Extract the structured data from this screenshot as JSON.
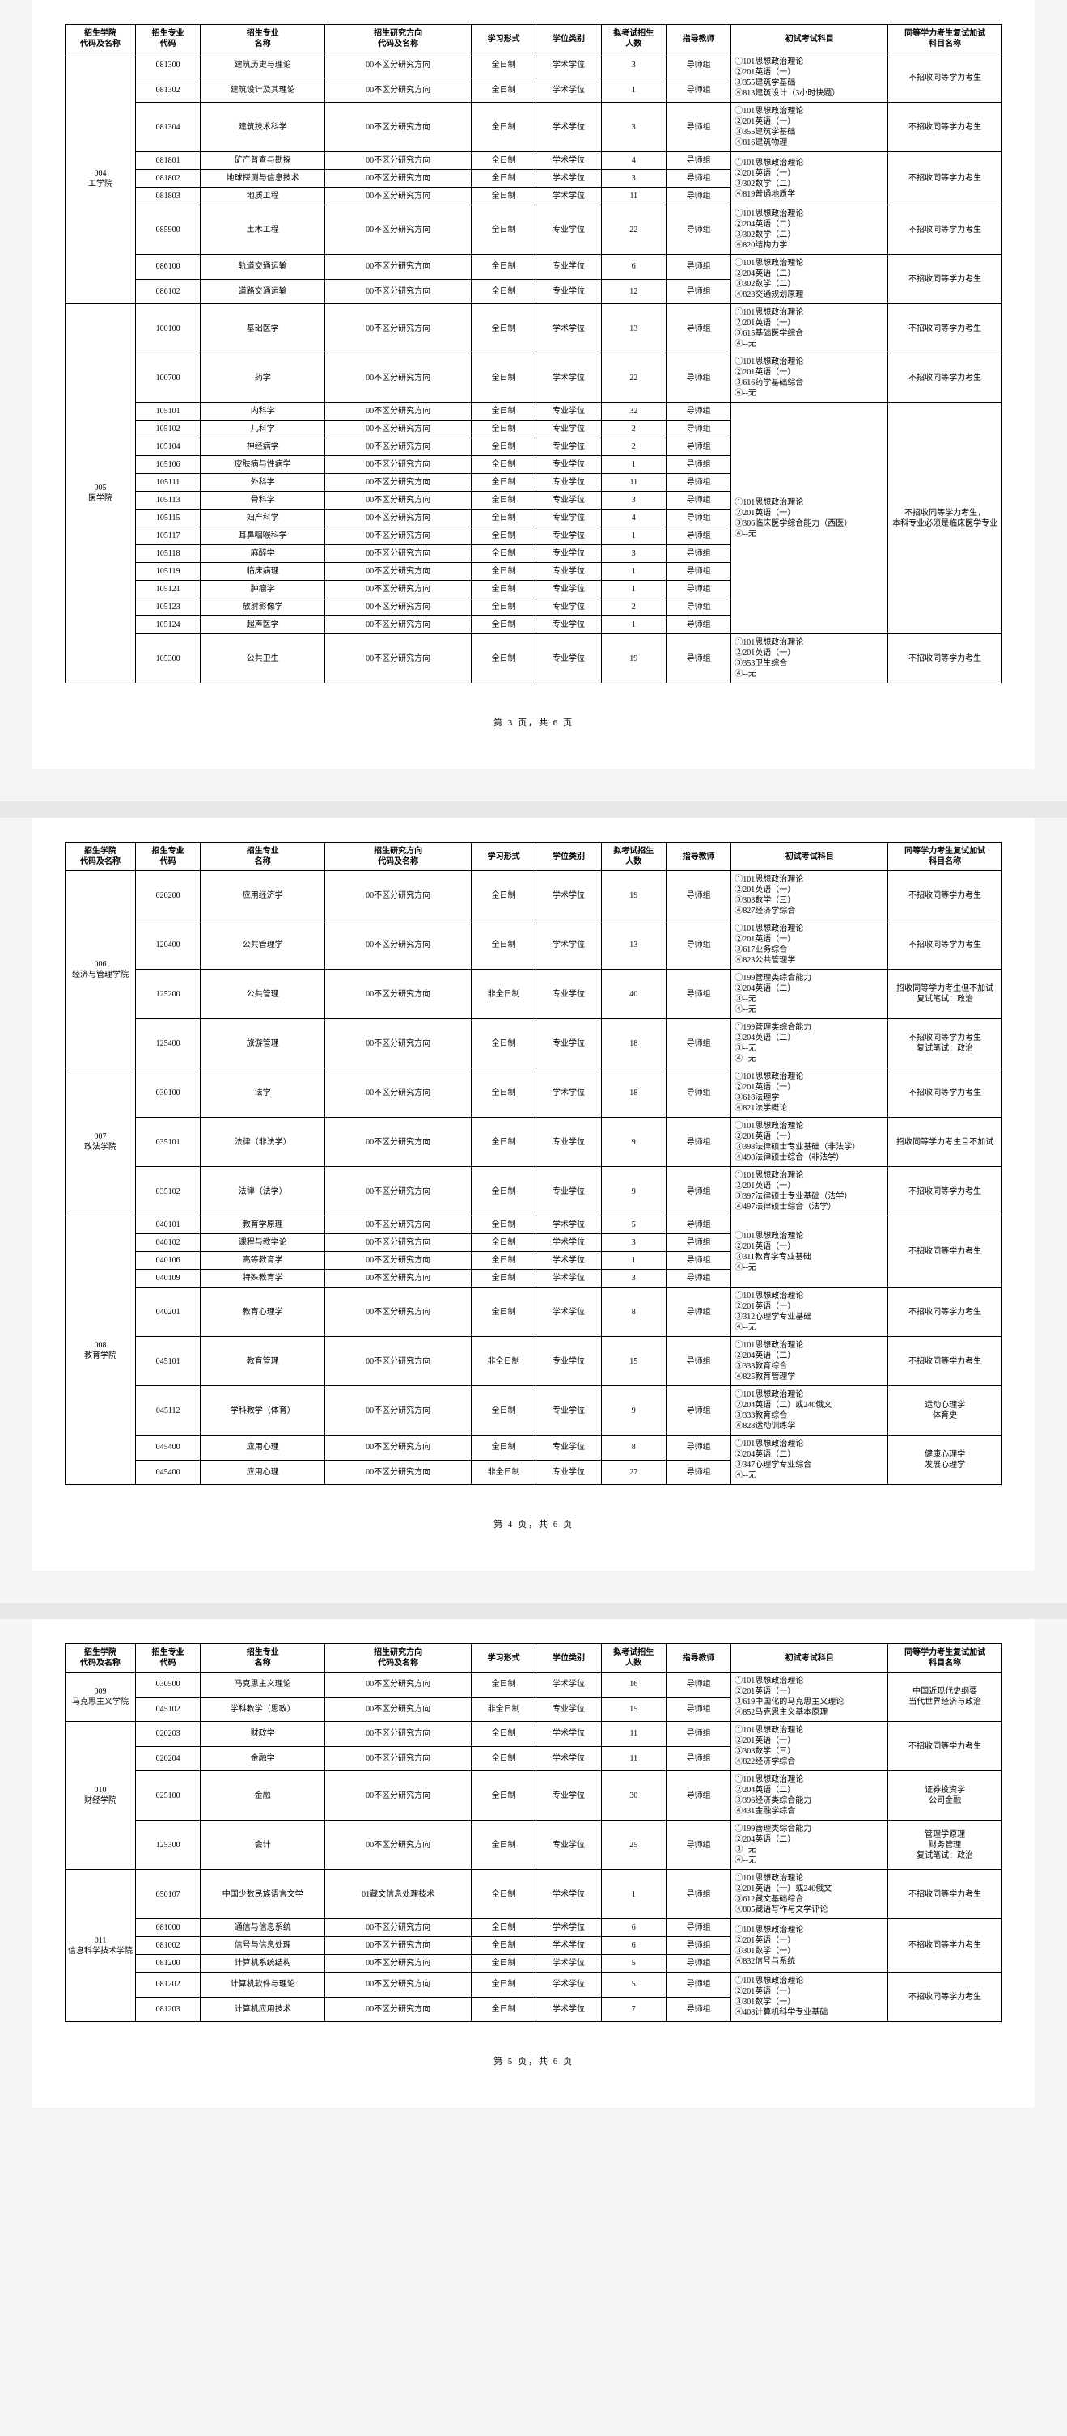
{
  "columns": [
    "招生学院\n代码及名称",
    "招生专业\n代码",
    "招生专业\n名称",
    "招生研究方向\n代码及名称",
    "学习形式",
    "学位类别",
    "拟考试招生\n人数",
    "指导教师",
    "初试考试科目",
    "同等学力考生复试加试\n科目名称"
  ],
  "footers": [
    "第 3 页，共 6 页",
    "第 4 页，共 6 页",
    "第 5 页，共 6 页"
  ],
  "common": {
    "dir": "00不区分研究方向",
    "ft": "全日制",
    "pt": "非全日制",
    "ac": "学术学位",
    "pro": "专业学位",
    "tg": "导师组"
  },
  "page3": {
    "depts": [
      {
        "id": "004",
        "name": "工学院",
        "groups": [
          {
            "note": "不招收同等学力考生",
            "rows": [
              {
                "code": "081300",
                "major": "建筑历史与理论",
                "form": "ft",
                "deg": "ac",
                "num": "3",
                "exam": "①101思想政治理论\n②201英语（一）\n③355建筑学基础\n④813建筑设计（3小时快题）"
              },
              {
                "code": "081302",
                "major": "建筑设计及其理论",
                "form": "ft",
                "deg": "ac",
                "num": "1",
                "exam": ""
              }
            ]
          },
          {
            "note": "不招收同等学力考生",
            "rows": [
              {
                "code": "081304",
                "major": "建筑技术科学",
                "form": "ft",
                "deg": "ac",
                "num": "3",
                "exam": "①101思想政治理论\n②201英语（一）\n③355建筑学基础\n④816建筑物理"
              }
            ]
          },
          {
            "note": "不招收同等学力考生",
            "rows": [
              {
                "code": "081801",
                "major": "矿产普查与勘探",
                "form": "ft",
                "deg": "ac",
                "num": "4",
                "exam": "①101思想政治理论\n②201英语（一）\n③302数学（二）\n④819普通地质学"
              },
              {
                "code": "081802",
                "major": "地球探测与信息技术",
                "form": "ft",
                "deg": "ac",
                "num": "3",
                "exam": ""
              },
              {
                "code": "081803",
                "major": "地质工程",
                "form": "ft",
                "deg": "ac",
                "num": "11",
                "exam": ""
              }
            ]
          },
          {
            "note": "不招收同等学力考生",
            "rows": [
              {
                "code": "085900",
                "major": "土木工程",
                "form": "ft",
                "deg": "pro",
                "num": "22",
                "exam": "①101思想政治理论\n②204英语（二）\n③302数学（二）\n④820结构力学"
              }
            ]
          },
          {
            "note": "不招收同等学力考生",
            "rows": [
              {
                "code": "086100",
                "major": "轨道交通运输",
                "form": "ft",
                "deg": "pro",
                "num": "6",
                "exam": "①101思想政治理论\n②204英语（二）\n③302数学（二）\n④823交通规划原理"
              },
              {
                "code": "086102",
                "major": "道路交通运输",
                "form": "ft",
                "deg": "pro",
                "num": "12",
                "exam": ""
              }
            ]
          }
        ]
      },
      {
        "id": "005",
        "name": "医学院",
        "groups": [
          {
            "note": "不招收同等学力考生",
            "rows": [
              {
                "code": "100100",
                "major": "基础医学",
                "form": "ft",
                "deg": "ac",
                "num": "13",
                "exam": "①101思想政治理论\n②201英语（一）\n③615基础医学综合\n④--无"
              }
            ]
          },
          {
            "note": "不招收同等学力考生",
            "rows": [
              {
                "code": "100700",
                "major": "药学",
                "form": "ft",
                "deg": "ac",
                "num": "22",
                "exam": "①101思想政治理论\n②201英语（一）\n③616药学基础综合\n④--无"
              }
            ]
          },
          {
            "note": "不招收同等学力考生，\n本科专业必须是临床医学专业",
            "rows": [
              {
                "code": "105101",
                "major": "内科学",
                "form": "ft",
                "deg": "pro",
                "num": "32",
                "exam": "①101思想政治理论\n②201英语（一）\n③306临床医学综合能力（西医）\n④--无"
              },
              {
                "code": "105102",
                "major": "儿科学",
                "form": "ft",
                "deg": "pro",
                "num": "2",
                "exam": ""
              },
              {
                "code": "105104",
                "major": "神经病学",
                "form": "ft",
                "deg": "pro",
                "num": "2",
                "exam": ""
              },
              {
                "code": "105106",
                "major": "皮肤病与性病学",
                "form": "ft",
                "deg": "pro",
                "num": "1",
                "exam": ""
              },
              {
                "code": "105111",
                "major": "外科学",
                "form": "ft",
                "deg": "pro",
                "num": "11",
                "exam": ""
              },
              {
                "code": "105113",
                "major": "骨科学",
                "form": "ft",
                "deg": "pro",
                "num": "3",
                "exam": ""
              },
              {
                "code": "105115",
                "major": "妇产科学",
                "form": "ft",
                "deg": "pro",
                "num": "4",
                "exam": ""
              },
              {
                "code": "105117",
                "major": "耳鼻咽喉科学",
                "form": "ft",
                "deg": "pro",
                "num": "1",
                "exam": ""
              },
              {
                "code": "105118",
                "major": "麻醉学",
                "form": "ft",
                "deg": "pro",
                "num": "3",
                "exam": ""
              },
              {
                "code": "105119",
                "major": "临床病理",
                "form": "ft",
                "deg": "pro",
                "num": "1",
                "exam": ""
              },
              {
                "code": "105121",
                "major": "肿瘤学",
                "form": "ft",
                "deg": "pro",
                "num": "1",
                "exam": ""
              },
              {
                "code": "105123",
                "major": "放射影像学",
                "form": "ft",
                "deg": "pro",
                "num": "2",
                "exam": ""
              },
              {
                "code": "105124",
                "major": "超声医学",
                "form": "ft",
                "deg": "pro",
                "num": "1",
                "exam": ""
              }
            ]
          },
          {
            "note": "不招收同等学力考生",
            "rows": [
              {
                "code": "105300",
                "major": "公共卫生",
                "form": "ft",
                "deg": "pro",
                "num": "19",
                "exam": "①101思想政治理论\n②201英语（一）\n③353卫生综合\n④--无"
              }
            ]
          }
        ]
      }
    ]
  },
  "page4": {
    "depts": [
      {
        "id": "006",
        "name": "经济与管理学院",
        "groups": [
          {
            "note": "不招收同等学力考生",
            "rows": [
              {
                "code": "020200",
                "major": "应用经济学",
                "form": "ft",
                "deg": "ac",
                "num": "19",
                "exam": "①101思想政治理论\n②201英语（一）\n③303数学（三）\n④827经济学综合"
              }
            ]
          },
          {
            "note": "不招收同等学力考生",
            "rows": [
              {
                "code": "120400",
                "major": "公共管理学",
                "form": "ft",
                "deg": "ac",
                "num": "13",
                "exam": "①101思想政治理论\n②201英语（一）\n③617业务综合\n④823公共管理学"
              }
            ]
          },
          {
            "note": "招收同等学力考生但不加试\n复试笔试：政治",
            "rows": [
              {
                "code": "125200",
                "major": "公共管理",
                "form": "pt",
                "deg": "pro",
                "num": "40",
                "exam": "①199管理类综合能力\n②204英语（二）\n③--无\n④--无"
              }
            ]
          },
          {
            "note": "不招收同等学力考生\n复试笔试：政治",
            "rows": [
              {
                "code": "125400",
                "major": "旅游管理",
                "form": "ft",
                "deg": "pro",
                "num": "18",
                "exam": "①199管理类综合能力\n②204英语（二）\n③--无\n④--无"
              }
            ]
          }
        ]
      },
      {
        "id": "007",
        "name": "政法学院",
        "groups": [
          {
            "note": "不招收同等学力考生",
            "rows": [
              {
                "code": "030100",
                "major": "法学",
                "form": "ft",
                "deg": "ac",
                "num": "18",
                "exam": "①101思想政治理论\n②201英语（一）\n③618法理学\n④821法学概论"
              }
            ]
          },
          {
            "note": "招收同等学力考生且不加试",
            "rows": [
              {
                "code": "035101",
                "major": "法律（非法学）",
                "form": "ft",
                "deg": "pro",
                "num": "9",
                "exam": "①101思想政治理论\n②201英语（一）\n③398法律硕士专业基础（非法学）\n④498法律硕士综合（非法学）"
              }
            ]
          },
          {
            "note": "不招收同等学力考生",
            "rows": [
              {
                "code": "035102",
                "major": "法律（法学）",
                "form": "ft",
                "deg": "pro",
                "num": "9",
                "exam": "①101思想政治理论\n②201英语（一）\n③397法律硕士专业基础（法学）\n④497法律硕士综合（法学）"
              }
            ]
          }
        ]
      },
      {
        "id": "008",
        "name": "教育学院",
        "groups": [
          {
            "note": "不招收同等学力考生",
            "rows": [
              {
                "code": "040101",
                "major": "教育学原理",
                "form": "ft",
                "deg": "ac",
                "num": "5",
                "exam": "①101思想政治理论\n②201英语（一）\n③311教育学专业基础\n④--无"
              },
              {
                "code": "040102",
                "major": "课程与教学论",
                "form": "ft",
                "deg": "ac",
                "num": "3",
                "exam": ""
              },
              {
                "code": "040106",
                "major": "高等教育学",
                "form": "ft",
                "deg": "ac",
                "num": "1",
                "exam": ""
              },
              {
                "code": "040109",
                "major": "特殊教育学",
                "form": "ft",
                "deg": "ac",
                "num": "3",
                "exam": ""
              }
            ]
          },
          {
            "note": "不招收同等学力考生",
            "rows": [
              {
                "code": "040201",
                "major": "教育心理学",
                "form": "ft",
                "deg": "ac",
                "num": "8",
                "exam": "①101思想政治理论\n②201英语（一）\n③312心理学专业基础\n④--无"
              }
            ]
          },
          {
            "note": "不招收同等学力考生",
            "rows": [
              {
                "code": "045101",
                "major": "教育管理",
                "form": "pt",
                "deg": "pro",
                "num": "15",
                "exam": "①101思想政治理论\n②204英语（二）\n③333教育综合\n④825教育管理学"
              }
            ]
          },
          {
            "note": "运动心理学\n体育史",
            "rows": [
              {
                "code": "045112",
                "major": "学科教学（体育）",
                "form": "ft",
                "deg": "pro",
                "num": "9",
                "exam": "①101思想政治理论\n②204英语（二）或240俄文\n③333教育综合\n④828运动训练学"
              }
            ]
          },
          {
            "note": "健康心理学\n发展心理学",
            "rows": [
              {
                "code": "045400",
                "major": "应用心理",
                "form": "ft",
                "deg": "pro",
                "num": "8",
                "exam": "①101思想政治理论\n②204英语（二）\n③347心理学专业综合\n④--无"
              },
              {
                "code": "045400",
                "major": "应用心理",
                "form": "pt",
                "deg": "pro",
                "num": "27",
                "exam": ""
              }
            ]
          }
        ]
      }
    ]
  },
  "page5": {
    "depts": [
      {
        "id": "009",
        "name": "马克思主义学院",
        "groups": [
          {
            "note": "中国近现代史纲要\n当代世界经济与政治",
            "rows": [
              {
                "code": "030500",
                "major": "马克思主义理论",
                "form": "ft",
                "deg": "ac",
                "num": "16",
                "exam": "①101思想政治理论\n②201英语（一）\n③619中国化的马克思主义理论\n④852马克思主义基本原理"
              },
              {
                "code": "045102",
                "major": "学科教学（思政）",
                "form": "pt",
                "deg": "pro",
                "num": "15",
                "exam": "①101思想政治理论\n②204英语（二）\n③333教育综合\n④828思想政治教育原理"
              }
            ]
          }
        ]
      },
      {
        "id": "010",
        "name": "财经学院",
        "groups": [
          {
            "note": "不招收同等学力考生",
            "rows": [
              {
                "code": "020203",
                "major": "财政学",
                "form": "ft",
                "deg": "ac",
                "num": "11",
                "exam": "①101思想政治理论\n②201英语（一）\n③303数学（三）\n④822经济学综合"
              },
              {
                "code": "020204",
                "major": "金融学",
                "form": "ft",
                "deg": "ac",
                "num": "11",
                "exam": ""
              }
            ]
          },
          {
            "note": "证券投资学\n公司金融",
            "rows": [
              {
                "code": "025100",
                "major": "金融",
                "form": "ft",
                "deg": "pro",
                "num": "30",
                "exam": "①101思想政治理论\n②204英语（二）\n③396经济类综合能力\n④431金融学综合"
              }
            ]
          },
          {
            "note": "管理学原理\n财务管理\n复试笔试：政治",
            "rows": [
              {
                "code": "125300",
                "major": "会计",
                "form": "ft",
                "deg": "pro",
                "num": "25",
                "exam": "①199管理类综合能力\n②204英语（二）\n③--无\n④--无"
              }
            ]
          }
        ]
      },
      {
        "id": "011",
        "name": "信息科学技术学院",
        "groups": [
          {
            "note": "不招收同等学力考生",
            "rows": [
              {
                "code": "050107",
                "major": "中国少数民族语言文学",
                "dir": "01藏文信息处理技术",
                "form": "ft",
                "deg": "ac",
                "num": "1",
                "exam": "①101思想政治理论\n②201英语（一）或240俄文\n③612藏文基础综合\n④805藏语写作与文学评论"
              }
            ]
          },
          {
            "note": "不招收同等学力考生",
            "rows": [
              {
                "code": "081000",
                "major": "通信与信息系统",
                "form": "ft",
                "deg": "ac",
                "num": "6",
                "exam": "①101思想政治理论\n②201英语（一）\n③301数学（一）\n④832信号与系统"
              },
              {
                "code": "081002",
                "major": "信号与信息处理",
                "form": "ft",
                "deg": "ac",
                "num": "6",
                "exam": ""
              },
              {
                "code": "081200",
                "major": "计算机系统结构",
                "form": "ft",
                "deg": "ac",
                "num": "5",
                "exam": ""
              }
            ]
          },
          {
            "note": "不招收同等学力考生",
            "rows": [
              {
                "code": "081202",
                "major": "计算机软件与理论",
                "form": "ft",
                "deg": "ac",
                "num": "5",
                "exam": "①101思想政治理论\n②201英语（一）\n③301数学（一）\n④408计算机科学专业基础"
              },
              {
                "code": "081203",
                "major": "计算机应用技术",
                "form": "ft",
                "deg": "ac",
                "num": "7",
                "exam": ""
              }
            ]
          }
        ]
      }
    ]
  }
}
